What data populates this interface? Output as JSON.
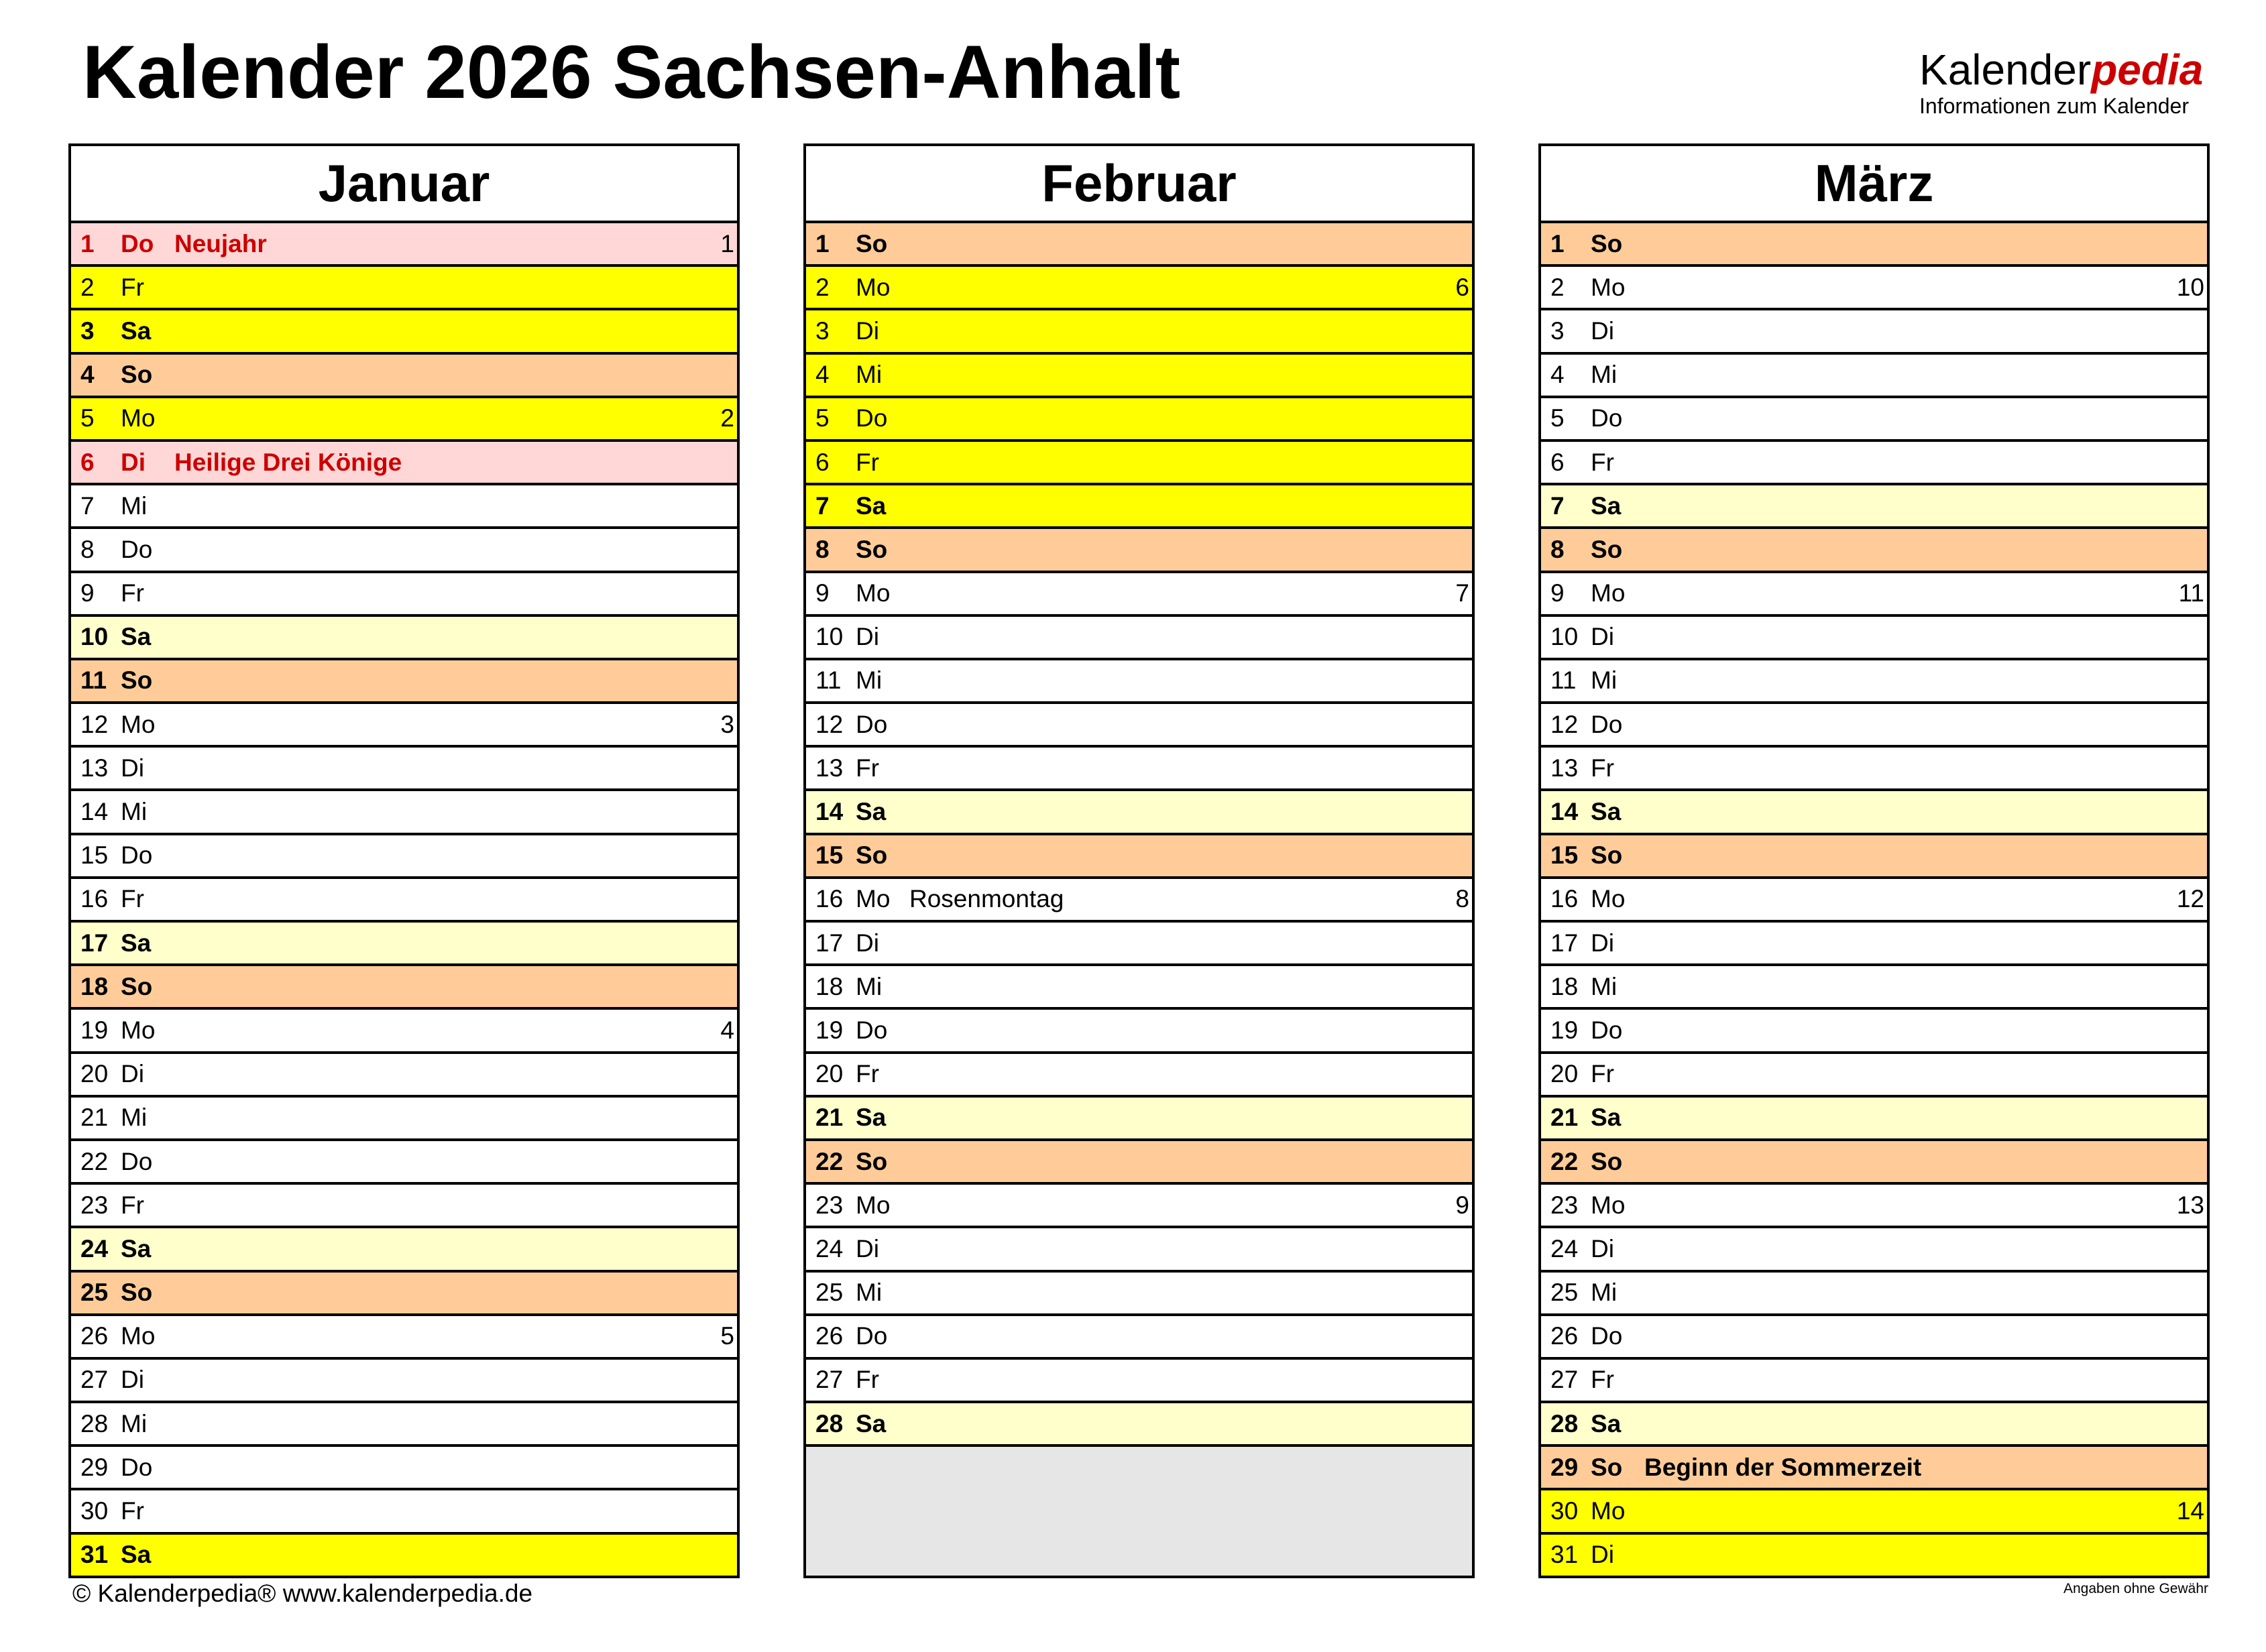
{
  "title": "Kalender 2026 Sachsen-Anhalt",
  "logo": {
    "brand_black": "Kalender",
    "brand_red": "pedia",
    "tagline": "Informationen zum Kalender"
  },
  "colors": {
    "holiday_bg": "#ffd7d7",
    "holiday_text": "#cc0000",
    "vacation": "#ffff00",
    "sunday": "#ffcc99",
    "saturday": "#ffffcc",
    "empty": "#e6e6e6"
  },
  "months": [
    {
      "name": "Januar",
      "rows": [
        {
          "d": "1",
          "wd": "Do",
          "type": "holiday",
          "note": "Neujahr",
          "kw": "1"
        },
        {
          "d": "2",
          "wd": "Fr",
          "type": "vacation"
        },
        {
          "d": "3",
          "wd": "Sa",
          "type": "vacation-sat"
        },
        {
          "d": "4",
          "wd": "So",
          "type": "sunday"
        },
        {
          "d": "5",
          "wd": "Mo",
          "type": "vacation",
          "kw": "2"
        },
        {
          "d": "6",
          "wd": "Di",
          "type": "holiday",
          "note": "Heilige Drei Könige"
        },
        {
          "d": "7",
          "wd": "Mi",
          "type": "normal"
        },
        {
          "d": "8",
          "wd": "Do",
          "type": "normal"
        },
        {
          "d": "9",
          "wd": "Fr",
          "type": "normal"
        },
        {
          "d": "10",
          "wd": "Sa",
          "type": "saturday"
        },
        {
          "d": "11",
          "wd": "So",
          "type": "sunday"
        },
        {
          "d": "12",
          "wd": "Mo",
          "type": "normal",
          "kw": "3"
        },
        {
          "d": "13",
          "wd": "Di",
          "type": "normal"
        },
        {
          "d": "14",
          "wd": "Mi",
          "type": "normal"
        },
        {
          "d": "15",
          "wd": "Do",
          "type": "normal"
        },
        {
          "d": "16",
          "wd": "Fr",
          "type": "normal"
        },
        {
          "d": "17",
          "wd": "Sa",
          "type": "saturday"
        },
        {
          "d": "18",
          "wd": "So",
          "type": "sunday"
        },
        {
          "d": "19",
          "wd": "Mo",
          "type": "normal",
          "kw": "4"
        },
        {
          "d": "20",
          "wd": "Di",
          "type": "normal"
        },
        {
          "d": "21",
          "wd": "Mi",
          "type": "normal"
        },
        {
          "d": "22",
          "wd": "Do",
          "type": "normal"
        },
        {
          "d": "23",
          "wd": "Fr",
          "type": "normal"
        },
        {
          "d": "24",
          "wd": "Sa",
          "type": "saturday"
        },
        {
          "d": "25",
          "wd": "So",
          "type": "sunday"
        },
        {
          "d": "26",
          "wd": "Mo",
          "type": "normal",
          "kw": "5"
        },
        {
          "d": "27",
          "wd": "Di",
          "type": "normal"
        },
        {
          "d": "28",
          "wd": "Mi",
          "type": "normal"
        },
        {
          "d": "29",
          "wd": "Do",
          "type": "normal"
        },
        {
          "d": "30",
          "wd": "Fr",
          "type": "normal"
        },
        {
          "d": "31",
          "wd": "Sa",
          "type": "vacation-sat"
        }
      ]
    },
    {
      "name": "Februar",
      "rows": [
        {
          "d": "1",
          "wd": "So",
          "type": "sunday"
        },
        {
          "d": "2",
          "wd": "Mo",
          "type": "vacation",
          "kw": "6"
        },
        {
          "d": "3",
          "wd": "Di",
          "type": "vacation"
        },
        {
          "d": "4",
          "wd": "Mi",
          "type": "vacation"
        },
        {
          "d": "5",
          "wd": "Do",
          "type": "vacation"
        },
        {
          "d": "6",
          "wd": "Fr",
          "type": "vacation"
        },
        {
          "d": "7",
          "wd": "Sa",
          "type": "vacation-sat"
        },
        {
          "d": "8",
          "wd": "So",
          "type": "sunday"
        },
        {
          "d": "9",
          "wd": "Mo",
          "type": "normal",
          "kw": "7"
        },
        {
          "d": "10",
          "wd": "Di",
          "type": "normal"
        },
        {
          "d": "11",
          "wd": "Mi",
          "type": "normal"
        },
        {
          "d": "12",
          "wd": "Do",
          "type": "normal"
        },
        {
          "d": "13",
          "wd": "Fr",
          "type": "normal"
        },
        {
          "d": "14",
          "wd": "Sa",
          "type": "saturday"
        },
        {
          "d": "15",
          "wd": "So",
          "type": "sunday"
        },
        {
          "d": "16",
          "wd": "Mo",
          "type": "normal",
          "note": "Rosenmontag",
          "kw": "8"
        },
        {
          "d": "17",
          "wd": "Di",
          "type": "normal"
        },
        {
          "d": "18",
          "wd": "Mi",
          "type": "normal"
        },
        {
          "d": "19",
          "wd": "Do",
          "type": "normal"
        },
        {
          "d": "20",
          "wd": "Fr",
          "type": "normal"
        },
        {
          "d": "21",
          "wd": "Sa",
          "type": "saturday"
        },
        {
          "d": "22",
          "wd": "So",
          "type": "sunday"
        },
        {
          "d": "23",
          "wd": "Mo",
          "type": "normal",
          "kw": "9"
        },
        {
          "d": "24",
          "wd": "Di",
          "type": "normal"
        },
        {
          "d": "25",
          "wd": "Mi",
          "type": "normal"
        },
        {
          "d": "26",
          "wd": "Do",
          "type": "normal"
        },
        {
          "d": "27",
          "wd": "Fr",
          "type": "normal"
        },
        {
          "d": "28",
          "wd": "Sa",
          "type": "saturday"
        }
      ]
    },
    {
      "name": "März",
      "rows": [
        {
          "d": "1",
          "wd": "So",
          "type": "sunday"
        },
        {
          "d": "2",
          "wd": "Mo",
          "type": "normal",
          "kw": "10"
        },
        {
          "d": "3",
          "wd": "Di",
          "type": "normal"
        },
        {
          "d": "4",
          "wd": "Mi",
          "type": "normal"
        },
        {
          "d": "5",
          "wd": "Do",
          "type": "normal"
        },
        {
          "d": "6",
          "wd": "Fr",
          "type": "normal"
        },
        {
          "d": "7",
          "wd": "Sa",
          "type": "saturday"
        },
        {
          "d": "8",
          "wd": "So",
          "type": "sunday"
        },
        {
          "d": "9",
          "wd": "Mo",
          "type": "normal",
          "kw": "11"
        },
        {
          "d": "10",
          "wd": "Di",
          "type": "normal"
        },
        {
          "d": "11",
          "wd": "Mi",
          "type": "normal"
        },
        {
          "d": "12",
          "wd": "Do",
          "type": "normal"
        },
        {
          "d": "13",
          "wd": "Fr",
          "type": "normal"
        },
        {
          "d": "14",
          "wd": "Sa",
          "type": "saturday"
        },
        {
          "d": "15",
          "wd": "So",
          "type": "sunday"
        },
        {
          "d": "16",
          "wd": "Mo",
          "type": "normal",
          "kw": "12"
        },
        {
          "d": "17",
          "wd": "Di",
          "type": "normal"
        },
        {
          "d": "18",
          "wd": "Mi",
          "type": "normal"
        },
        {
          "d": "19",
          "wd": "Do",
          "type": "normal"
        },
        {
          "d": "20",
          "wd": "Fr",
          "type": "normal"
        },
        {
          "d": "21",
          "wd": "Sa",
          "type": "saturday"
        },
        {
          "d": "22",
          "wd": "So",
          "type": "sunday"
        },
        {
          "d": "23",
          "wd": "Mo",
          "type": "normal",
          "kw": "13"
        },
        {
          "d": "24",
          "wd": "Di",
          "type": "normal"
        },
        {
          "d": "25",
          "wd": "Mi",
          "type": "normal"
        },
        {
          "d": "26",
          "wd": "Do",
          "type": "normal"
        },
        {
          "d": "27",
          "wd": "Fr",
          "type": "normal"
        },
        {
          "d": "28",
          "wd": "Sa",
          "type": "saturday"
        },
        {
          "d": "29",
          "wd": "So",
          "type": "sunday",
          "note": "Beginn der Sommerzeit"
        },
        {
          "d": "30",
          "wd": "Mo",
          "type": "vacation",
          "kw": "14"
        },
        {
          "d": "31",
          "wd": "Di",
          "type": "vacation"
        }
      ]
    }
  ],
  "footer": {
    "copyright": "© Kalenderpedia®   www.kalenderpedia.de",
    "disclaimer": "Angaben ohne Gewähr"
  }
}
